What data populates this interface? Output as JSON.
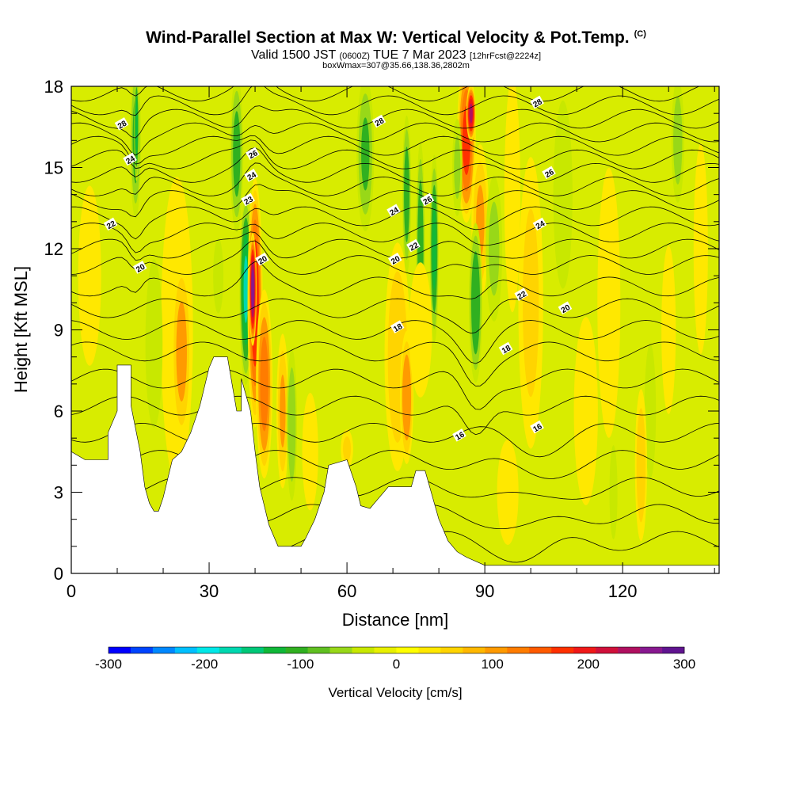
{
  "header": {
    "title": "Wind-Parallel Section at Max W: Vertical Velocity & Pot.Temp.",
    "copyright": "(C)",
    "valid_prefix": "Valid 1500 JST",
    "valid_utc": "(0600Z)",
    "valid_date": "TUE 7 Mar 2023",
    "forecast": "[12hrFcst@2224z]",
    "box": "boxWmax=307@35.66,138.36,2802m"
  },
  "chart_data": {
    "type": "heatmap",
    "title": "Wind-Parallel Section at Max W: Vertical Velocity & Pot.Temp.",
    "xlabel": "Distance [nm]",
    "ylabel": "Height [Kft MSL]",
    "xlim": [
      0,
      141
    ],
    "ylim": [
      0,
      18
    ],
    "x_ticks": [
      "0",
      "30",
      "60",
      "90",
      "120"
    ],
    "y_ticks": [
      "0",
      "3",
      "6",
      "9",
      "12",
      "15",
      "18"
    ],
    "grid": false,
    "colorbar": {
      "label": "Vertical Velocity [cm/s]",
      "range": [
        -300,
        300
      ],
      "tick_labels": [
        "-300",
        "-200",
        "-100",
        "0",
        "100",
        "200",
        "300"
      ],
      "colors": [
        "#0000ff",
        "#0044ff",
        "#0088ff",
        "#00c0ff",
        "#00e8e8",
        "#00d8b0",
        "#00c878",
        "#10b838",
        "#30b020",
        "#60c020",
        "#98d818",
        "#c8e800",
        "#e8f000",
        "#ffff00",
        "#ffe800",
        "#ffd400",
        "#ffb800",
        "#ff9a00",
        "#ff7c00",
        "#ff5a00",
        "#ff3000",
        "#f01818",
        "#d0103a",
        "#b01060",
        "#881890",
        "#601490"
      ]
    },
    "terrain": [
      [
        0,
        4.5
      ],
      [
        3,
        4.2
      ],
      [
        8,
        4.2
      ],
      [
        8,
        5.2
      ],
      [
        10,
        6.0
      ],
      [
        10,
        7.7
      ],
      [
        13,
        7.7
      ],
      [
        13,
        6.2
      ],
      [
        15,
        4.5
      ],
      [
        16,
        3.2
      ],
      [
        17,
        2.6
      ],
      [
        18,
        2.3
      ],
      [
        19,
        2.3
      ],
      [
        20,
        2.8
      ],
      [
        21,
        3.5
      ],
      [
        22,
        4.2
      ],
      [
        24,
        4.5
      ],
      [
        26,
        5.2
      ],
      [
        28,
        6.2
      ],
      [
        30,
        7.6
      ],
      [
        31,
        8.0
      ],
      [
        34,
        8.0
      ],
      [
        35,
        7.0
      ],
      [
        36,
        6.0
      ],
      [
        37,
        6.0
      ],
      [
        37,
        7.2
      ],
      [
        39,
        6.0
      ],
      [
        40,
        4.5
      ],
      [
        41,
        3.2
      ],
      [
        42,
        2.5
      ],
      [
        43,
        1.8
      ],
      [
        44,
        1.4
      ],
      [
        45,
        1.0
      ],
      [
        50,
        1.0
      ],
      [
        51,
        1.3
      ],
      [
        53,
        2.0
      ],
      [
        55,
        3.0
      ],
      [
        56,
        4.0
      ],
      [
        60,
        4.2
      ],
      [
        62,
        3.2
      ],
      [
        63,
        2.5
      ],
      [
        65,
        2.4
      ],
      [
        67,
        2.8
      ],
      [
        69,
        3.2
      ],
      [
        74,
        3.2
      ],
      [
        75,
        3.8
      ],
      [
        77,
        3.8
      ],
      [
        78,
        3.2
      ],
      [
        80,
        2.0
      ],
      [
        81,
        1.6
      ],
      [
        82,
        1.2
      ],
      [
        84,
        0.8
      ],
      [
        86,
        0.6
      ],
      [
        90,
        0.3
      ],
      [
        141,
        0.3
      ]
    ],
    "contour_labels": [
      {
        "label": "28",
        "x": 11,
        "y": 16.6
      },
      {
        "label": "24",
        "x": 12.8,
        "y": 15.3
      },
      {
        "label": "22",
        "x": 8.6,
        "y": 12.9
      },
      {
        "label": "20",
        "x": 15,
        "y": 11.3
      },
      {
        "label": "26",
        "x": 39.5,
        "y": 15.5
      },
      {
        "label": "24",
        "x": 39.2,
        "y": 14.7
      },
      {
        "label": "23",
        "x": 38.5,
        "y": 13.8
      },
      {
        "label": "20",
        "x": 41.6,
        "y": 11.6
      },
      {
        "label": "28",
        "x": 67,
        "y": 16.7
      },
      {
        "label": "26",
        "x": 77.5,
        "y": 13.8
      },
      {
        "label": "24",
        "x": 70.2,
        "y": 13.4
      },
      {
        "label": "22",
        "x": 74.5,
        "y": 12.1
      },
      {
        "label": "20",
        "x": 70.5,
        "y": 11.6
      },
      {
        "label": "18",
        "x": 71,
        "y": 9.1
      },
      {
        "label": "16",
        "x": 84.5,
        "y": 5.1
      },
      {
        "label": "18",
        "x": 94.6,
        "y": 8.3
      },
      {
        "label": "16",
        "x": 101.4,
        "y": 5.4
      },
      {
        "label": "22",
        "x": 98,
        "y": 10.3
      },
      {
        "label": "24",
        "x": 102,
        "y": 12.9
      },
      {
        "label": "26",
        "x": 104,
        "y": 14.8
      },
      {
        "label": "28",
        "x": 101.4,
        "y": 17.4
      },
      {
        "label": "20",
        "x": 107.5,
        "y": 9.8
      }
    ]
  }
}
